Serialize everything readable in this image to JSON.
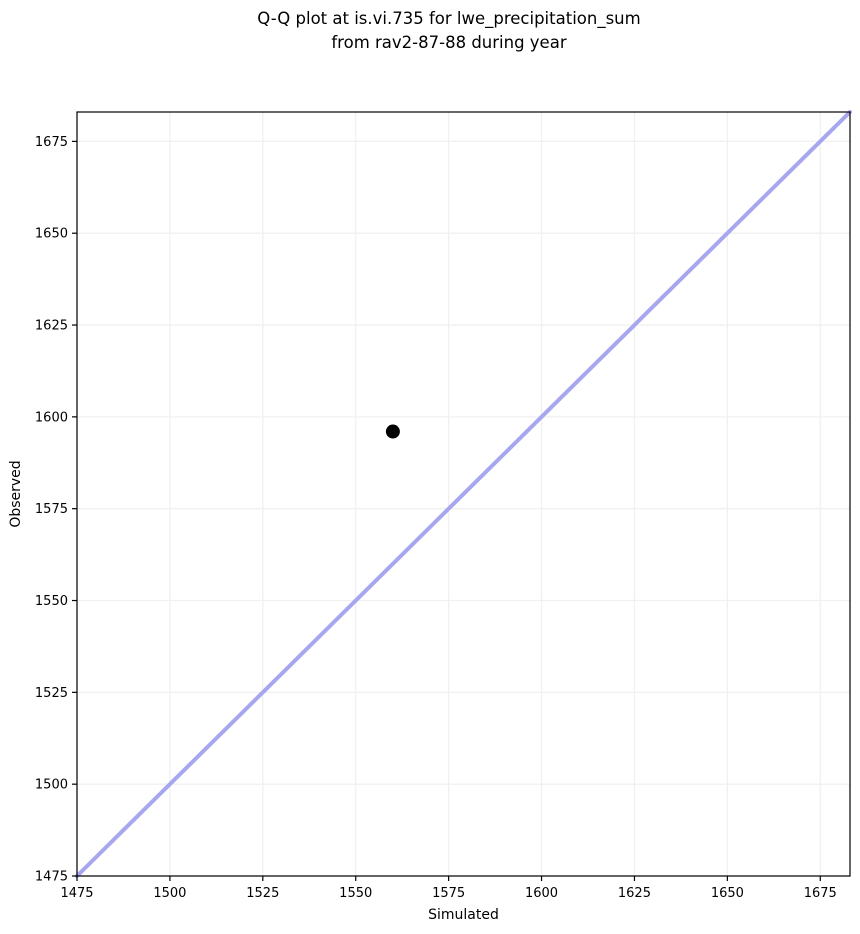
{
  "figure": {
    "title_line1": "Q-Q plot at is.vi.735 for lwe_precipitation_sum",
    "title_line2": "from rav2-87-88 during year"
  },
  "chart_data": {
    "type": "scatter",
    "title": "Q-Q plot at is.vi.735 for lwe_precipitation_sum\nfrom rav2-87-88 during year",
    "xlabel": "Simulated",
    "ylabel": "Observed",
    "xlim": [
      1475,
      1683
    ],
    "ylim": [
      1475,
      1683
    ],
    "xticks": [
      "1475",
      "1500",
      "1525",
      "1550",
      "1575",
      "1600",
      "1625",
      "1650",
      "1675"
    ],
    "yticks": [
      "1475",
      "1500",
      "1525",
      "1550",
      "1575",
      "1600",
      "1625",
      "1650",
      "1675"
    ],
    "grid": true,
    "legend": false,
    "points": [
      {
        "x": 1560,
        "y": 1596
      }
    ],
    "identity_line": {
      "x1": 1475,
      "y1": 1475,
      "x2": 1683,
      "y2": 1683
    },
    "colors": {
      "identity_line": "#a7a7f0",
      "point": "#000000",
      "grid": "#f0f0f0",
      "spine": "#000000",
      "text": "#000000"
    }
  }
}
